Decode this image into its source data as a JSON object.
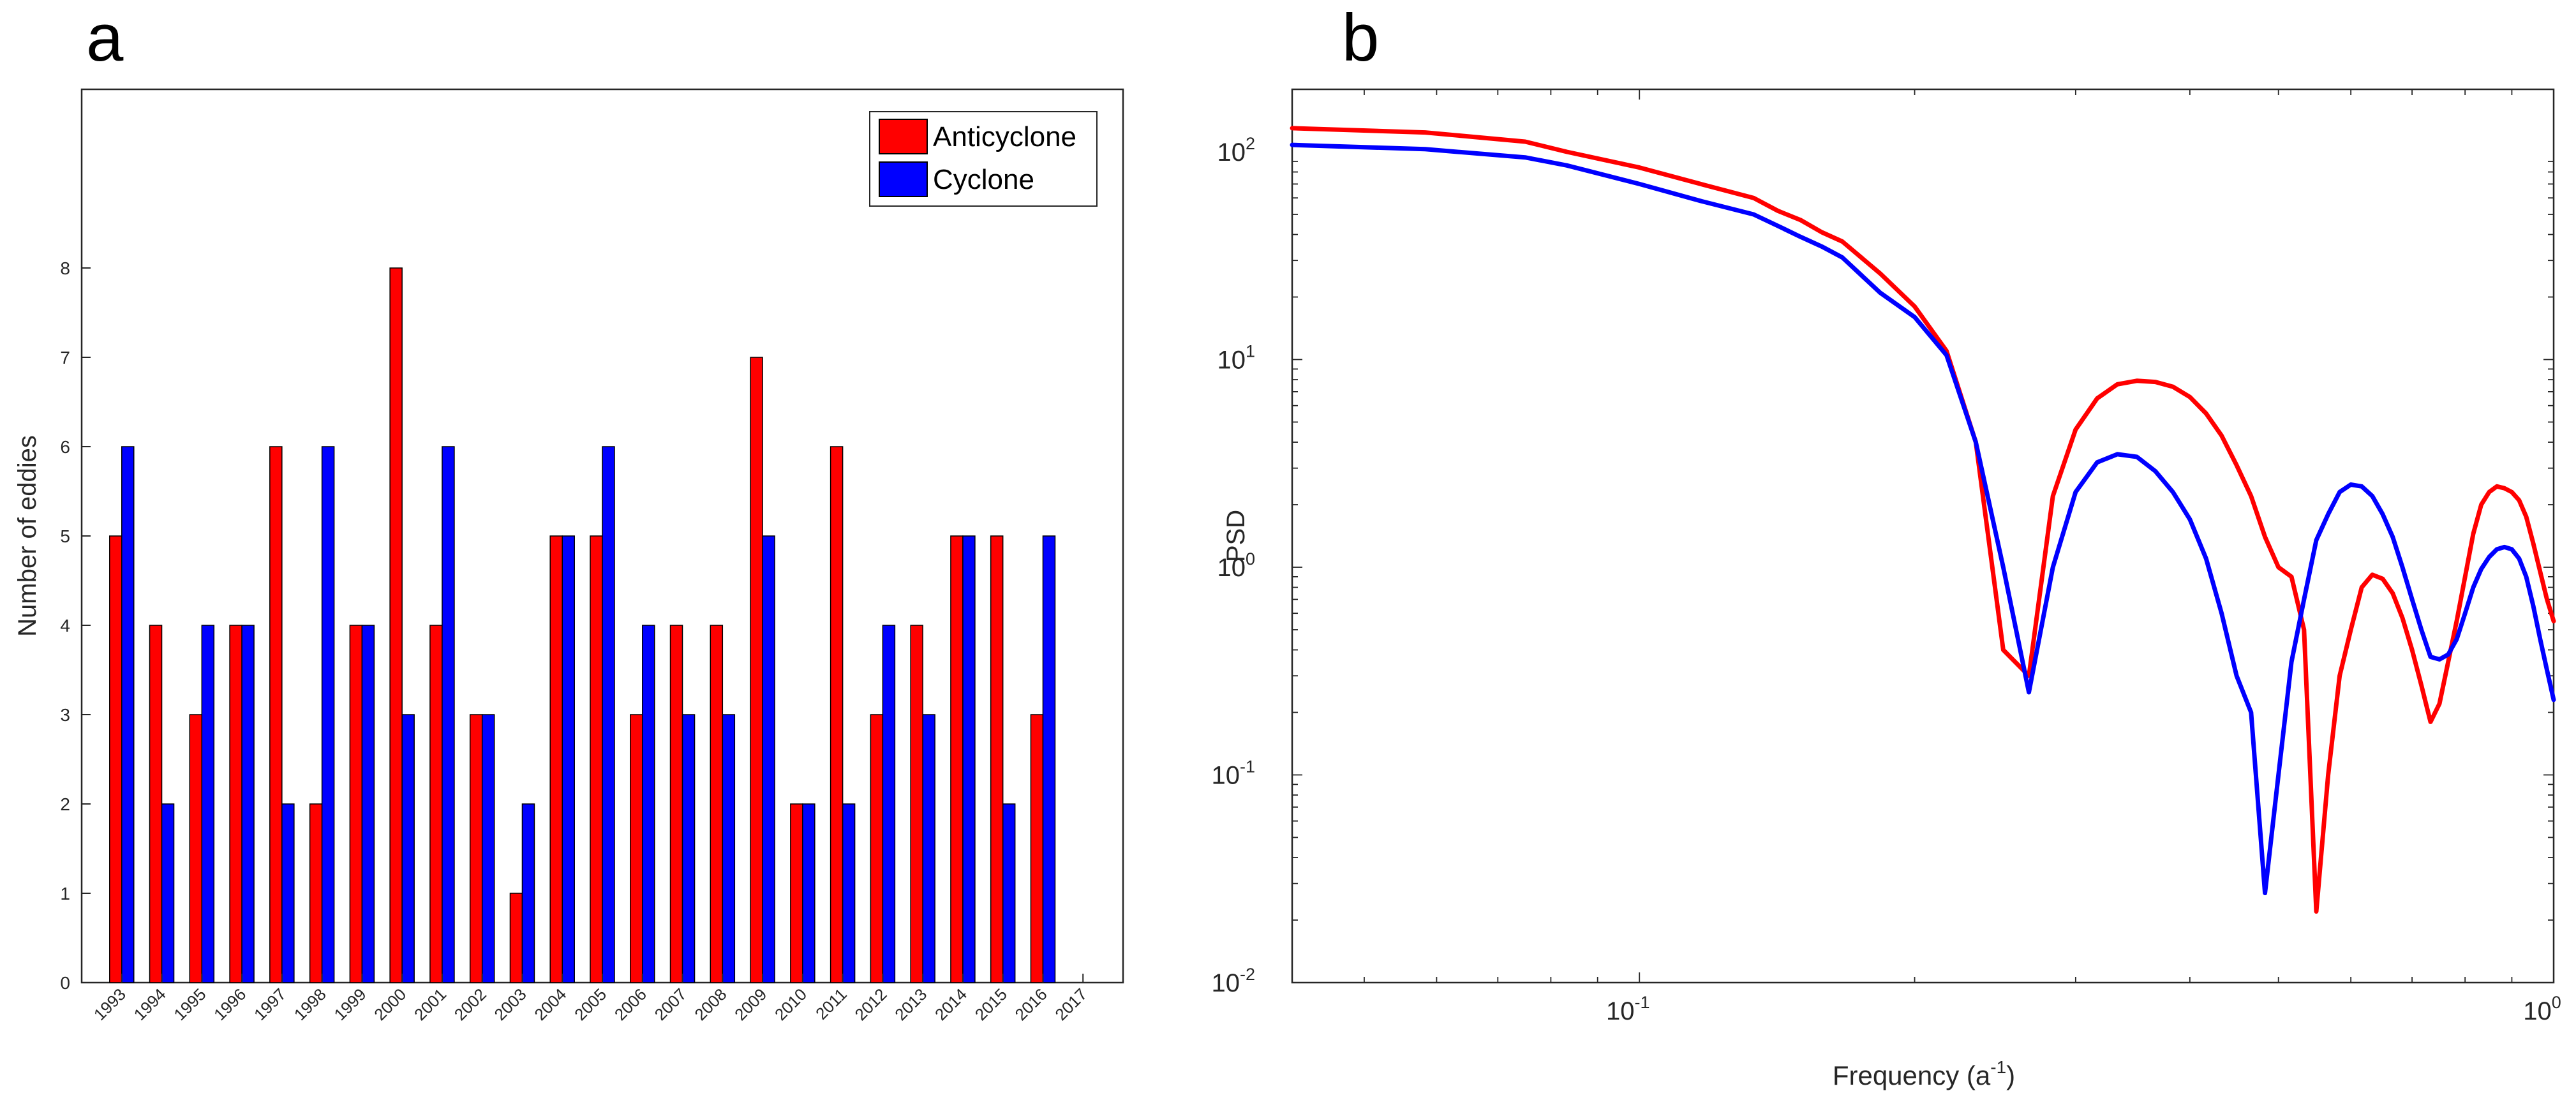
{
  "panels": {
    "a": {
      "label": "a"
    },
    "b": {
      "label": "b"
    }
  },
  "colors": {
    "anticyclone": "#ff0000",
    "cyclone": "#0000ff",
    "axis": "#262626",
    "tick_text": "#262626"
  },
  "chart_data": [
    {
      "panel": "a",
      "type": "bar",
      "title": "",
      "xlabel": "",
      "ylabel": "Number of eddies",
      "categories": [
        "1993",
        "1994",
        "1995",
        "1996",
        "1997",
        "1998",
        "1999",
        "2000",
        "2001",
        "2002",
        "2003",
        "2004",
        "2005",
        "2006",
        "2007",
        "2008",
        "2009",
        "2010",
        "2011",
        "2012",
        "2013",
        "2014",
        "2015",
        "2016",
        "2017"
      ],
      "series": [
        {
          "name": "Anticyclone",
          "values": [
            5,
            4,
            3,
            4,
            6,
            2,
            4,
            8,
            4,
            3,
            1,
            5,
            5,
            3,
            4,
            4,
            7,
            2,
            6,
            3,
            4,
            5,
            5,
            3,
            null
          ]
        },
        {
          "name": "Cyclone",
          "values": [
            6,
            2,
            4,
            4,
            2,
            6,
            4,
            3,
            6,
            3,
            2,
            5,
            6,
            4,
            3,
            3,
            5,
            2,
            2,
            4,
            3,
            5,
            2,
            5,
            null
          ]
        }
      ],
      "ylim": [
        0,
        10
      ],
      "yticks": [
        0,
        1,
        2,
        3,
        4,
        5,
        6,
        7,
        8
      ],
      "legend": "top-right",
      "grid": false
    },
    {
      "panel": "b",
      "type": "line",
      "title": "",
      "xlabel": "Frequency (a",
      "xlabel_superscript": "-1",
      "xlabel_suffix": ")",
      "ylabel": "PSD",
      "xscale": "log",
      "yscale": "log",
      "xlim": [
        0.0417,
        1
      ],
      "ylim": [
        0.01,
        200
      ],
      "xtick_labels": [
        {
          "value": 0.1,
          "base": "10",
          "exp": "-1"
        },
        {
          "value": 1,
          "base": "10",
          "exp": "0"
        }
      ],
      "ytick_labels": [
        {
          "value": 0.01,
          "base": "10",
          "exp": "-2"
        },
        {
          "value": 0.1,
          "base": "10",
          "exp": "-1"
        },
        {
          "value": 1,
          "base": "10",
          "exp": "0"
        },
        {
          "value": 10,
          "base": "10",
          "exp": "1"
        },
        {
          "value": 100,
          "base": "10",
          "exp": "2"
        }
      ],
      "grid": false,
      "series": [
        {
          "color": "#ff0000",
          "x": [
            0.0417,
            0.0583,
            0.075,
            0.0833,
            0.1,
            0.1167,
            0.1333,
            0.1417,
            0.15,
            0.1583,
            0.1667,
            0.1833,
            0.2,
            0.2167,
            0.2333,
            0.25,
            0.2667,
            0.2833,
            0.3,
            0.3167,
            0.3333,
            0.35,
            0.3667,
            0.3833,
            0.4,
            0.4167,
            0.4333,
            0.45,
            0.4667,
            0.4833,
            0.5,
            0.5167,
            0.5333,
            0.55,
            0.5667,
            0.5833,
            0.6,
            0.6167,
            0.6333,
            0.65,
            0.6667,
            0.6833,
            0.7,
            0.7167,
            0.7333,
            0.75,
            0.7667,
            0.7833,
            0.8,
            0.8167,
            0.8333,
            0.85,
            0.8667,
            0.8833,
            0.9,
            0.9167,
            0.9333,
            0.95,
            0.9667,
            0.9833,
            1.0
          ],
          "y": [
            130,
            124,
            112,
            100,
            84,
            70,
            60,
            52,
            47,
            41,
            37,
            26,
            18,
            11,
            4.0,
            0.4,
            0.3,
            2.2,
            4.6,
            6.5,
            7.6,
            7.9,
            7.8,
            7.4,
            6.6,
            5.5,
            4.3,
            3.1,
            2.2,
            1.4,
            1.0,
            0.9,
            0.5,
            0.022,
            0.1,
            0.3,
            0.5,
            0.8,
            0.92,
            0.88,
            0.75,
            0.57,
            0.4,
            0.27,
            0.18,
            0.22,
            0.35,
            0.55,
            0.9,
            1.45,
            2.0,
            2.3,
            2.45,
            2.4,
            2.3,
            2.1,
            1.75,
            1.3,
            0.95,
            0.7,
            0.55
          ]
        },
        {
          "color": "#0000ff",
          "x": [
            0.0417,
            0.0583,
            0.075,
            0.0833,
            0.1,
            0.1167,
            0.1333,
            0.1417,
            0.15,
            0.1583,
            0.1667,
            0.1833,
            0.2,
            0.2167,
            0.2333,
            0.25,
            0.2667,
            0.2833,
            0.3,
            0.3167,
            0.3333,
            0.35,
            0.3667,
            0.3833,
            0.4,
            0.4167,
            0.4333,
            0.45,
            0.4667,
            0.4833,
            0.5,
            0.5167,
            0.5333,
            0.55,
            0.5667,
            0.5833,
            0.6,
            0.6167,
            0.6333,
            0.65,
            0.6667,
            0.6833,
            0.7,
            0.7167,
            0.7333,
            0.75,
            0.7667,
            0.7833,
            0.8,
            0.8167,
            0.8333,
            0.85,
            0.8667,
            0.8833,
            0.9,
            0.9167,
            0.9333,
            0.95,
            0.9667,
            0.9833,
            1.0
          ],
          "y": [
            108,
            103,
            94,
            86,
            70,
            58,
            50,
            44,
            39,
            35,
            31,
            21,
            16,
            10.5,
            4.0,
            1.0,
            0.25,
            1.0,
            2.3,
            3.2,
            3.5,
            3.4,
            2.9,
            2.3,
            1.7,
            1.1,
            0.6,
            0.3,
            0.2,
            0.027,
            0.1,
            0.35,
            0.7,
            1.35,
            1.8,
            2.3,
            2.5,
            2.45,
            2.2,
            1.8,
            1.4,
            1.0,
            0.7,
            0.5,
            0.37,
            0.36,
            0.38,
            0.45,
            0.6,
            0.8,
            0.98,
            1.12,
            1.22,
            1.25,
            1.22,
            1.1,
            0.9,
            0.65,
            0.45,
            0.32,
            0.23
          ]
        }
      ]
    }
  ]
}
